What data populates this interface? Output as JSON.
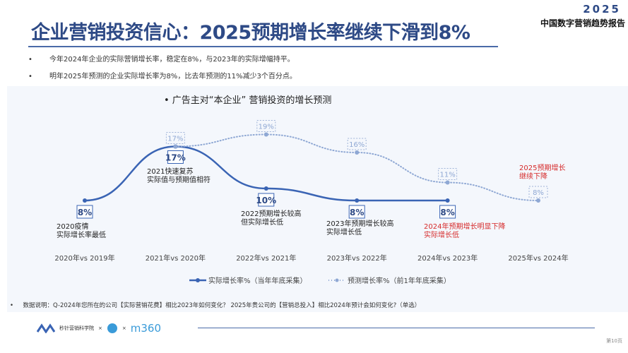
{
  "header": {
    "title": "企业营销投资信心：2025预期增长率继续下滑到8%",
    "brand_year": "2025",
    "brand_name": "中国数字营销趋势报告"
  },
  "bullets": [
    "今年2024年企业的实际营销增长率，稳定在8%，与2023年的实际增幅持平。",
    "明年2025年预测的企业实际增长率为8%，比去年预测的11%减少3个百分点。"
  ],
  "chart_data": {
    "type": "line",
    "title": "广告主对“本企业” 营销投资的增长预测",
    "categories": [
      "2020年vs 2019年",
      "2021年vs 2020年",
      "2022年vs 2021年",
      "2023年vs 2022年",
      "2024年vs 2023年",
      "2025年vs 2024年"
    ],
    "series": [
      {
        "name": "实际增长率%（当年年底采集）",
        "values": [
          8,
          17,
          10,
          8,
          8,
          null
        ],
        "color": "#3a64b4",
        "style": "solid"
      },
      {
        "name": "预测增长率%（前1年年底采集）",
        "values": [
          null,
          17,
          19,
          16,
          11,
          8
        ],
        "color": "#8fa8d4",
        "style": "dotted"
      }
    ],
    "annotations": [
      {
        "text": "2020疫情\n实际增长率最低",
        "color": "#222"
      },
      {
        "text": "2021快速复苏\n实际值与预期值相符",
        "color": "#222"
      },
      {
        "text": "2022预期增长较高\n但实际增长低",
        "color": "#222"
      },
      {
        "text": "2023年预期增长较高\n实际增长低",
        "color": "#222"
      },
      {
        "text": "2024年预期增长明显下降\n实际增长低",
        "color": "#d62b2b"
      },
      {
        "text": "2025预期增长\n继续下降",
        "color": "#d62b2b"
      }
    ]
  },
  "footer": {
    "note": "数据说明：Q-2024年您所在的公司【实际营销花费】相比2023年如何变化？   2025年贵公司的【营销总投入】相比2024年预计会如何变化?（单选）",
    "logo1": "秒针营销科学院",
    "times": "×",
    "logo3": "m360",
    "page": "第10页"
  }
}
